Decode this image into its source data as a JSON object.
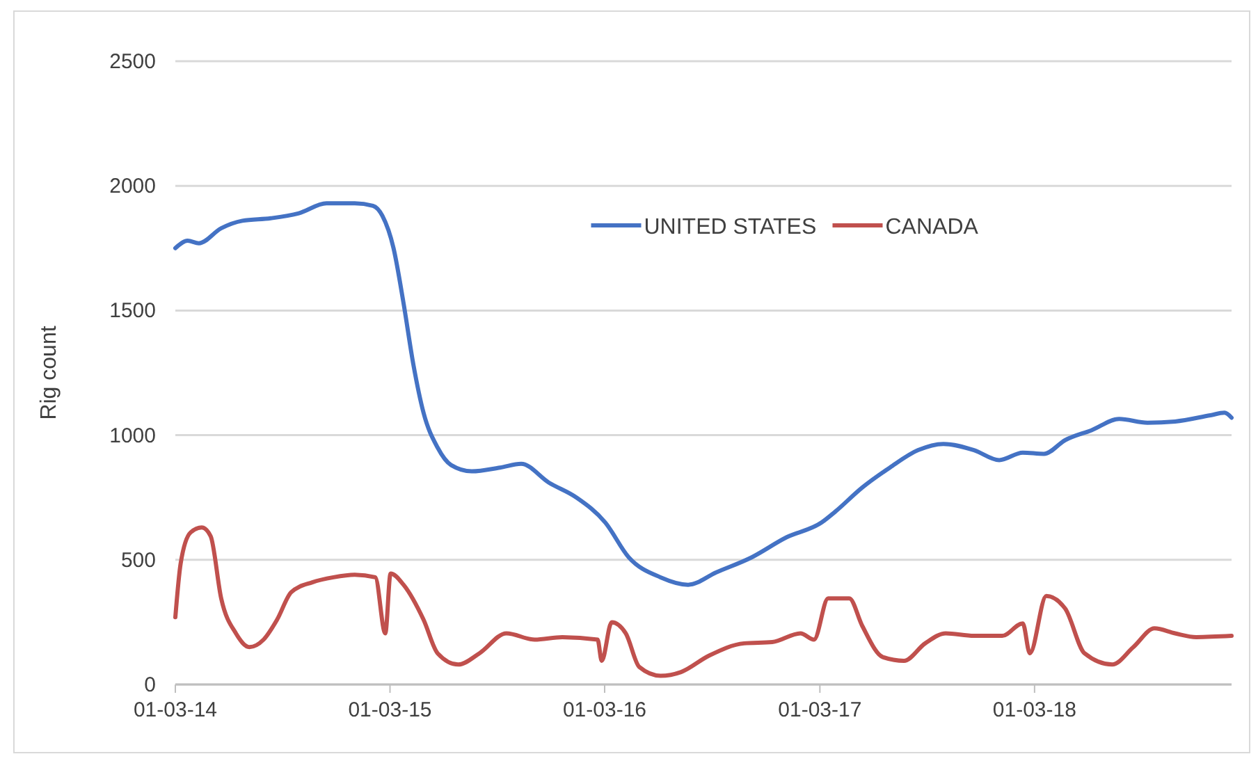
{
  "chart_data": {
    "type": "line",
    "ylabel": "Rig count",
    "ylim": [
      0,
      2500
    ],
    "yticks": [
      0,
      500,
      1000,
      1500,
      2000,
      2500
    ],
    "xlim": [
      "2014-01-03",
      "2018-12-04"
    ],
    "xticks": [
      {
        "value": "2014-01-03",
        "label": "01-03-14"
      },
      {
        "value": "2015-01-03",
        "label": "01-03-15"
      },
      {
        "value": "2016-01-03",
        "label": "01-03-16"
      },
      {
        "value": "2017-01-03",
        "label": "01-03-17"
      },
      {
        "value": "2018-01-03",
        "label": "01-03-18"
      }
    ],
    "grid": "y",
    "legend": "top",
    "marker": "none",
    "line_style": "solid",
    "series": [
      {
        "name": "UNITED STATES",
        "color": "#4472c4",
        "x": [
          "2014-01-03",
          "2014-01-24",
          "2014-02-12",
          "2014-03-22",
          "2014-04-27",
          "2014-06-14",
          "2014-08-01",
          "2014-09-17",
          "2014-11-04",
          "2014-12-05",
          "2014-12-21",
          "2015-01-09",
          "2015-01-26",
          "2015-02-12",
          "2015-03-01",
          "2015-03-25",
          "2015-04-17",
          "2015-05-22",
          "2015-07-09",
          "2015-08-14",
          "2015-09-30",
          "2015-11-16",
          "2016-01-04",
          "2016-02-13",
          "2016-04-07",
          "2016-05-24",
          "2016-07-11",
          "2016-09-09",
          "2016-11-07",
          "2017-01-06",
          "2017-01-29",
          "2017-03-16",
          "2017-05-02",
          "2017-06-19",
          "2017-08-01",
          "2017-09-22",
          "2017-11-04",
          "2017-12-14",
          "2018-01-19",
          "2018-02-24",
          "2018-04-10",
          "2018-05-27",
          "2018-07-14",
          "2018-08-30",
          "2018-10-29",
          "2018-11-22",
          "2018-12-04"
        ],
        "values": [
          1750,
          1780,
          1770,
          1830,
          1860,
          1870,
          1890,
          1930,
          1930,
          1920,
          1880,
          1750,
          1530,
          1280,
          1090,
          950,
          880,
          855,
          870,
          885,
          810,
          750,
          650,
          510,
          430,
          400,
          450,
          510,
          590,
          650,
          693,
          790,
          870,
          940,
          965,
          940,
          900,
          930,
          925,
          980,
          1020,
          1065,
          1050,
          1055,
          1080,
          1090,
          1070
        ]
      },
      {
        "name": "CANADA",
        "color": "#c0504d",
        "x": [
          "2014-01-03",
          "2014-01-12",
          "2014-01-29",
          "2014-02-17",
          "2014-03-04",
          "2014-03-22",
          "2014-04-16",
          "2014-05-09",
          "2014-06-02",
          "2014-06-25",
          "2014-07-19",
          "2014-08-24",
          "2014-09-29",
          "2014-11-04",
          "2014-12-09",
          "2014-12-26",
          "2015-01-04",
          "2015-01-26",
          "2015-03-01",
          "2015-03-25",
          "2015-04-29",
          "2015-06-04",
          "2015-07-20",
          "2015-09-06",
          "2015-10-23",
          "2015-12-22",
          "2015-12-29",
          "2016-01-15",
          "2016-02-08",
          "2016-03-02",
          "2016-04-07",
          "2016-05-12",
          "2016-06-28",
          "2016-08-27",
          "2016-10-14",
          "2016-12-01",
          "2016-12-24",
          "2017-01-17",
          "2017-02-22",
          "2017-03-16",
          "2017-04-20",
          "2017-05-26",
          "2017-07-01",
          "2017-08-05",
          "2017-09-22",
          "2017-11-09",
          "2017-12-14",
          "2017-12-26",
          "2018-01-23",
          "2018-02-24",
          "2018-03-29",
          "2018-05-15",
          "2018-06-20",
          "2018-07-26",
          "2018-08-30",
          "2018-10-05",
          "2018-12-04"
        ],
        "values": [
          270,
          485,
          610,
          630,
          595,
          345,
          205,
          150,
          180,
          260,
          370,
          410,
          430,
          440,
          430,
          205,
          445,
          400,
          260,
          125,
          80,
          125,
          205,
          180,
          190,
          180,
          95,
          250,
          205,
          70,
          35,
          50,
          115,
          165,
          170,
          205,
          180,
          345,
          345,
          235,
          110,
          95,
          165,
          205,
          195,
          195,
          245,
          125,
          355,
          305,
          125,
          80,
          150,
          225,
          205,
          190,
          195
        ]
      }
    ]
  }
}
